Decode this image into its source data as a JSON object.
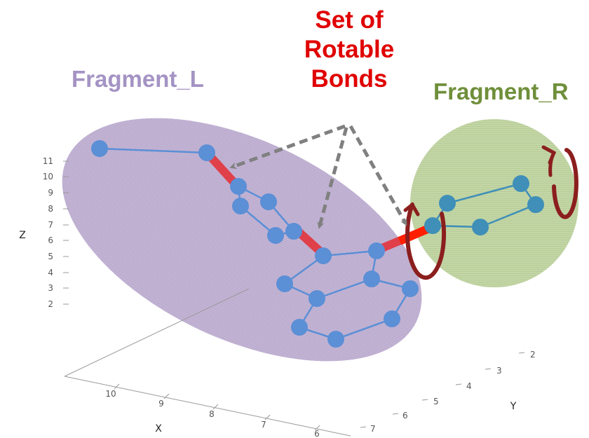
{
  "labels": {
    "fragment_left": "Fragment_L",
    "fragment_right": "Fragment_R",
    "annotation_lines": [
      "Set of",
      "Rotable",
      "Bonds"
    ]
  },
  "axes": {
    "z_title": "Z",
    "x_title": "X",
    "y_title": "Y",
    "z_ticks": [
      "11",
      "10",
      "9",
      "8",
      "7",
      "6",
      "5",
      "4",
      "3",
      "2"
    ],
    "x_ticks": [
      "10",
      "9",
      "8",
      "7",
      "6"
    ],
    "y_ticks": [
      "2",
      "3",
      "4",
      "5",
      "6",
      "7"
    ]
  },
  "colors": {
    "fragment_left_fill": "#b8a7cf",
    "fragment_left_text": "#a493c4",
    "fragment_right_fill": "#bcd39b",
    "fragment_right_text": "#6f8f3a",
    "annotation_text": "#e00000",
    "atom_left": "#5b8fd6",
    "atom_right": "#3f8fb8",
    "bond_highlight": "#e0404a",
    "rotation_arrow": "#8b1e1e",
    "pointer_arrow": "#808080"
  }
}
